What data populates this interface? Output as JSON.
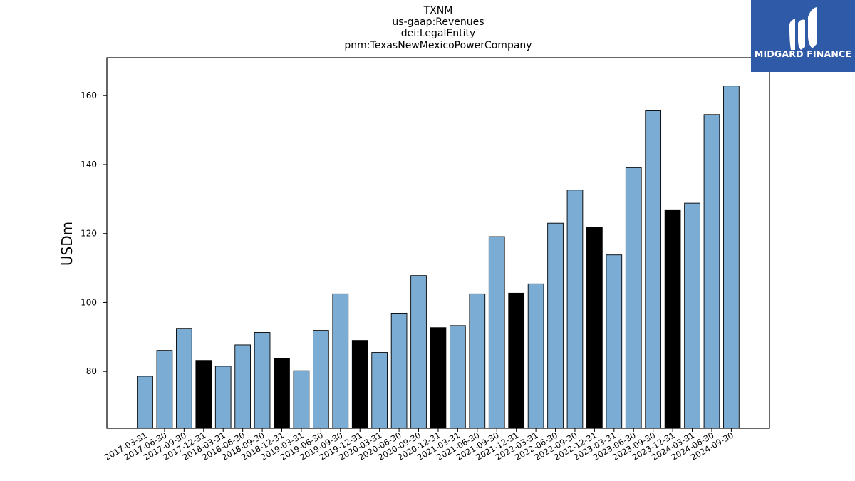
{
  "title_lines": [
    "TXNM",
    "us-gaap:Revenues",
    "dei:LegalEntity",
    "pnm:TexasNewMexicoPowerCompany"
  ],
  "logo": {
    "text": "MIDGARD FINANCE",
    "bg": "#2f5aa8"
  },
  "colors": {
    "normal_bar": "#7bacd3",
    "q4_bar": "#000000"
  },
  "chart_data": {
    "type": "bar",
    "ylabel": "USDm",
    "xlabel": "",
    "ylim": [
      63.5,
      171
    ],
    "yticks": [
      80,
      100,
      120,
      140,
      160
    ],
    "grid": false,
    "categories": [
      "2017-03-31",
      "2017-06-30",
      "2017-09-30",
      "2017-12-31",
      "2018-03-31",
      "2018-06-30",
      "2018-09-30",
      "2018-12-31",
      "2019-03-31",
      "2019-06-30",
      "2019-09-30",
      "2019-12-31",
      "2020-03-31",
      "2020-06-30",
      "2020-09-30",
      "2020-12-31",
      "2021-03-31",
      "2021-06-30",
      "2021-09-30",
      "2021-12-31",
      "2022-03-31",
      "2022-06-30",
      "2022-09-30",
      "2022-12-31",
      "2023-03-31",
      "2023-06-30",
      "2023-09-30",
      "2023-12-31",
      "2024-03-31",
      "2024-06-30",
      "2024-09-30"
    ],
    "values": [
      78.6,
      86.1,
      92.5,
      83.2,
      81.5,
      87.7,
      91.3,
      83.8,
      80.2,
      91.9,
      102.5,
      89.0,
      85.5,
      96.9,
      107.8,
      92.7,
      93.3,
      102.5,
      119.1,
      102.7,
      105.4,
      123.0,
      132.6,
      121.8,
      113.8,
      139.1,
      155.6,
      126.9,
      128.8,
      154.5,
      162.8
    ],
    "highlight_q4": true
  }
}
